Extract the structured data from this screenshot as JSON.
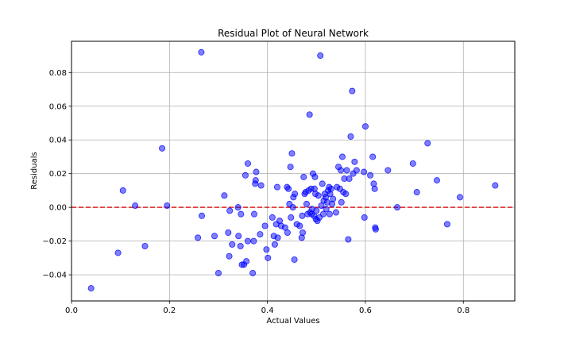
{
  "chart_data": {
    "type": "scatter",
    "title": "Residual Plot of Neural Network",
    "xlabel": "Actual Values",
    "ylabel": "Residuals",
    "xlim": [
      0.0,
      0.905
    ],
    "ylim": [
      -0.0555,
      0.0985
    ],
    "xticks": [
      0.0,
      0.2,
      0.4,
      0.6,
      0.8
    ],
    "xtick_labels": [
      "0.0",
      "0.2",
      "0.4",
      "0.6",
      "0.8"
    ],
    "yticks": [
      -0.04,
      -0.02,
      0.0,
      0.02,
      0.04,
      0.06,
      0.08
    ],
    "ytick_labels": [
      "−0.04",
      "−0.02",
      "0.00",
      "0.02",
      "0.04",
      "0.06",
      "0.08"
    ],
    "grid": true,
    "marker_color": "#0000ff",
    "reference_line": {
      "y": 0.0,
      "color": "#dd2222",
      "style": "dashed"
    },
    "points": [
      [
        0.04,
        -0.048
      ],
      [
        0.095,
        -0.027
      ],
      [
        0.105,
        0.01
      ],
      [
        0.13,
        0.001
      ],
      [
        0.15,
        -0.023
      ],
      [
        0.185,
        0.035
      ],
      [
        0.195,
        0.001
      ],
      [
        0.258,
        -0.018
      ],
      [
        0.265,
        0.092
      ],
      [
        0.266,
        -0.005
      ],
      [
        0.292,
        -0.017
      ],
      [
        0.3,
        -0.039
      ],
      [
        0.312,
        0.007
      ],
      [
        0.32,
        -0.015
      ],
      [
        0.322,
        -0.029
      ],
      [
        0.323,
        -0.002
      ],
      [
        0.328,
        -0.022
      ],
      [
        0.34,
        0.0
      ],
      [
        0.341,
        -0.017
      ],
      [
        0.345,
        -0.023
      ],
      [
        0.346,
        -0.004
      ],
      [
        0.348,
        -0.034
      ],
      [
        0.352,
        -0.034
      ],
      [
        0.355,
        0.019
      ],
      [
        0.357,
        -0.032
      ],
      [
        0.36,
        -0.02
      ],
      [
        0.36,
        0.026
      ],
      [
        0.37,
        -0.039
      ],
      [
        0.372,
        -0.02
      ],
      [
        0.373,
        -0.004
      ],
      [
        0.375,
        0.014
      ],
      [
        0.376,
        0.016
      ],
      [
        0.377,
        0.021
      ],
      [
        0.385,
        -0.016
      ],
      [
        0.387,
        0.013
      ],
      [
        0.395,
        -0.011
      ],
      [
        0.398,
        -0.025
      ],
      [
        0.401,
        -0.03
      ],
      [
        0.41,
        -0.006
      ],
      [
        0.413,
        -0.017
      ],
      [
        0.415,
        -0.022
      ],
      [
        0.418,
        -0.01
      ],
      [
        0.42,
        0.012
      ],
      [
        0.421,
        -0.018
      ],
      [
        0.425,
        -0.008
      ],
      [
        0.428,
        -0.011
      ],
      [
        0.436,
        -0.012
      ],
      [
        0.44,
        0.012
      ],
      [
        0.441,
        -0.015
      ],
      [
        0.443,
        0.011
      ],
      [
        0.445,
        0.002
      ],
      [
        0.447,
        0.024
      ],
      [
        0.448,
        -0.006
      ],
      [
        0.45,
        0.032
      ],
      [
        0.452,
        0.0
      ],
      [
        0.453,
        0.006
      ],
      [
        0.455,
        -0.031
      ],
      [
        0.456,
        0.008
      ],
      [
        0.46,
        -0.01
      ],
      [
        0.466,
        -0.011
      ],
      [
        0.47,
        -0.018
      ],
      [
        0.471,
        -0.005
      ],
      [
        0.472,
        -0.015
      ],
      [
        0.474,
        0.018
      ],
      [
        0.476,
        0.008
      ],
      [
        0.478,
        0.009
      ],
      [
        0.48,
        0.002
      ],
      [
        0.482,
        -0.004
      ],
      [
        0.484,
        0.01
      ],
      [
        0.486,
        0.055
      ],
      [
        0.487,
        -0.003
      ],
      [
        0.489,
        0.011
      ],
      [
        0.49,
        -0.004
      ],
      [
        0.491,
        -0.001
      ],
      [
        0.493,
        0.02
      ],
      [
        0.495,
        -0.005
      ],
      [
        0.496,
        0.011
      ],
      [
        0.497,
        0.018
      ],
      [
        0.498,
        0.008
      ],
      [
        0.499,
        -0.007
      ],
      [
        0.5,
        -0.002
      ],
      [
        0.502,
        -0.008
      ],
      [
        0.504,
        0.007
      ],
      [
        0.506,
        -0.006
      ],
      [
        0.508,
        0.09
      ],
      [
        0.51,
        0.001
      ],
      [
        0.512,
        0.014
      ],
      [
        0.514,
        -0.004
      ],
      [
        0.515,
        0.004
      ],
      [
        0.517,
        0.008
      ],
      [
        0.519,
        0.006
      ],
      [
        0.52,
        -0.001
      ],
      [
        0.522,
        0.003
      ],
      [
        0.524,
        0.01
      ],
      [
        0.526,
        0.012
      ],
      [
        0.527,
        -0.004
      ],
      [
        0.528,
        0.008
      ],
      [
        0.53,
        0.011
      ],
      [
        0.532,
        0.002
      ],
      [
        0.534,
        0.005
      ],
      [
        0.54,
        -0.003
      ],
      [
        0.542,
        0.012
      ],
      [
        0.545,
        0.024
      ],
      [
        0.548,
        0.011
      ],
      [
        0.55,
        0.022
      ],
      [
        0.551,
        0.003
      ],
      [
        0.553,
        0.03
      ],
      [
        0.555,
        0.009
      ],
      [
        0.557,
        0.017
      ],
      [
        0.56,
        0.008
      ],
      [
        0.562,
        0.022
      ],
      [
        0.565,
        -0.019
      ],
      [
        0.567,
        0.017
      ],
      [
        0.57,
        0.042
      ],
      [
        0.573,
        0.069
      ],
      [
        0.575,
        0.02
      ],
      [
        0.578,
        0.027
      ],
      [
        0.582,
        0.022
      ],
      [
        0.597,
        0.021
      ],
      [
        0.598,
        -0.006
      ],
      [
        0.6,
        0.048
      ],
      [
        0.61,
        0.019
      ],
      [
        0.615,
        0.03
      ],
      [
        0.617,
        0.014
      ],
      [
        0.619,
        0.011
      ],
      [
        0.62,
        -0.012
      ],
      [
        0.621,
        -0.013
      ],
      [
        0.646,
        0.022
      ],
      [
        0.665,
        0.0
      ],
      [
        0.697,
        0.026
      ],
      [
        0.705,
        0.009
      ],
      [
        0.727,
        0.038
      ],
      [
        0.746,
        0.016
      ],
      [
        0.767,
        -0.01
      ],
      [
        0.793,
        0.006
      ],
      [
        0.865,
        0.013
      ]
    ]
  }
}
